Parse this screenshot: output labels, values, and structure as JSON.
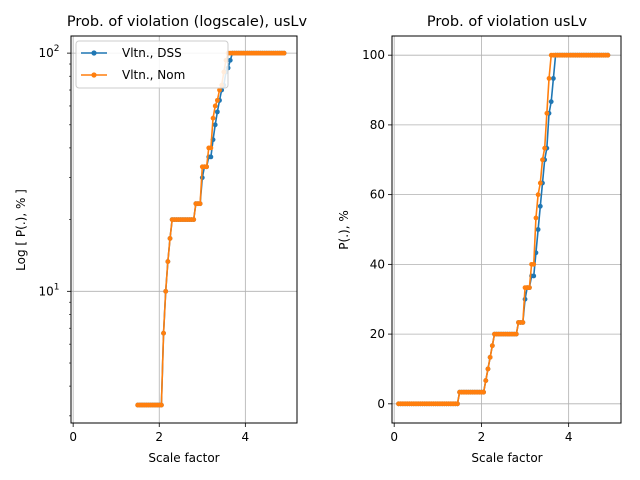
{
  "colors": {
    "dss": "#1f77b4",
    "nom": "#ff7f0e",
    "grid": "#b0b0b0"
  },
  "chart_data": [
    {
      "type": "line",
      "title": "Prob. of violation (logscale), usLv",
      "xlabel": "Scale factor",
      "ylabel": "Log [ P(.), % ]",
      "yscale": "log",
      "xlim": [
        -0.05,
        5.2
      ],
      "ylim": [
        2.8,
        118
      ],
      "xticks": [
        0,
        2,
        4
      ],
      "xtick_labels": [
        "0",
        "2",
        "4"
      ],
      "ytick_major": [
        {
          "value": 10,
          "base": "10",
          "exp": "1"
        },
        {
          "value": 100,
          "base": "10",
          "exp": "2"
        }
      ],
      "ytick_minor": [
        3,
        4,
        5,
        6,
        7,
        8,
        9,
        20,
        30,
        40,
        50,
        60,
        70,
        80,
        90
      ],
      "grid": true,
      "legend": "top-left",
      "series_ref": true
    },
    {
      "type": "line",
      "title": "Prob. of violation usLv",
      "xlabel": "Scale factor",
      "ylabel": "P(.), %",
      "yscale": "linear",
      "xlim": [
        -0.05,
        5.2
      ],
      "ylim": [
        -5.5,
        105.5
      ],
      "xticks": [
        0,
        2,
        4
      ],
      "xtick_labels": [
        "0",
        "2",
        "4"
      ],
      "yticks": [
        0,
        20,
        40,
        60,
        80,
        100
      ],
      "ytick_labels": [
        "0",
        "20",
        "40",
        "60",
        "80",
        "100"
      ],
      "grid": true,
      "series_ref": true
    }
  ],
  "series": [
    {
      "name": "Vltn., DSS",
      "color": "#1f77b4",
      "x": [
        0.1,
        0.15,
        0.2,
        0.25,
        0.3,
        0.35,
        0.4,
        0.45,
        0.5,
        0.55,
        0.6,
        0.65,
        0.7,
        0.75,
        0.8,
        0.85,
        0.9,
        0.95,
        1.0,
        1.05,
        1.1,
        1.15,
        1.2,
        1.25,
        1.3,
        1.35,
        1.4,
        1.45,
        1.5,
        1.55,
        1.6,
        1.65,
        1.7,
        1.75,
        1.8,
        1.85,
        1.9,
        1.95,
        2.0,
        2.05,
        2.1,
        2.15,
        2.2,
        2.25,
        2.3,
        2.35,
        2.4,
        2.45,
        2.5,
        2.55,
        2.6,
        2.65,
        2.7,
        2.75,
        2.8,
        2.85,
        2.9,
        2.95,
        3.0,
        3.05,
        3.1,
        3.15,
        3.2,
        3.25,
        3.3,
        3.35,
        3.4,
        3.45,
        3.5,
        3.55,
        3.6,
        3.65,
        3.7,
        3.75,
        3.8,
        3.85,
        3.9,
        3.95,
        4.0,
        4.05,
        4.1,
        4.15,
        4.2,
        4.25,
        4.3,
        4.35,
        4.4,
        4.45,
        4.5,
        4.55,
        4.6,
        4.65,
        4.7,
        4.75,
        4.8,
        4.85,
        4.9
      ],
      "y": [
        0,
        0,
        0,
        0,
        0,
        0,
        0,
        0,
        0,
        0,
        0,
        0,
        0,
        0,
        0,
        0,
        0,
        0,
        0,
        0,
        0,
        0,
        0,
        0,
        0,
        0,
        0,
        0,
        3.33,
        3.33,
        3.33,
        3.33,
        3.33,
        3.33,
        3.33,
        3.33,
        3.33,
        3.33,
        3.33,
        3.33,
        6.67,
        10,
        13.33,
        16.67,
        20,
        20,
        20,
        20,
        20,
        20,
        20,
        20,
        20,
        20,
        20,
        23.33,
        23.33,
        23.33,
        30,
        33.33,
        33.33,
        36.67,
        36.67,
        43.33,
        50,
        56.67,
        63.33,
        70,
        73.33,
        83.33,
        86.67,
        93.33,
        100,
        100,
        100,
        100,
        100,
        100,
        100,
        100,
        100,
        100,
        100,
        100,
        100,
        100,
        100,
        100,
        100,
        100,
        100,
        100,
        100,
        100,
        100,
        100,
        100
      ]
    },
    {
      "name": "Vltn., Nom",
      "color": "#ff7f0e",
      "x": [
        0.1,
        0.15,
        0.2,
        0.25,
        0.3,
        0.35,
        0.4,
        0.45,
        0.5,
        0.55,
        0.6,
        0.65,
        0.7,
        0.75,
        0.8,
        0.85,
        0.9,
        0.95,
        1.0,
        1.05,
        1.1,
        1.15,
        1.2,
        1.25,
        1.3,
        1.35,
        1.4,
        1.45,
        1.5,
        1.55,
        1.6,
        1.65,
        1.7,
        1.75,
        1.8,
        1.85,
        1.9,
        1.95,
        2.0,
        2.05,
        2.1,
        2.15,
        2.2,
        2.25,
        2.3,
        2.35,
        2.4,
        2.45,
        2.5,
        2.55,
        2.6,
        2.65,
        2.7,
        2.75,
        2.8,
        2.85,
        2.9,
        2.95,
        3.0,
        3.05,
        3.1,
        3.15,
        3.2,
        3.25,
        3.3,
        3.35,
        3.4,
        3.45,
        3.5,
        3.55,
        3.6,
        3.65,
        3.7,
        3.75,
        3.8,
        3.85,
        3.9,
        3.95,
        4.0,
        4.05,
        4.1,
        4.15,
        4.2,
        4.25,
        4.3,
        4.35,
        4.4,
        4.45,
        4.5,
        4.55,
        4.6,
        4.65,
        4.7,
        4.75,
        4.8,
        4.85,
        4.9
      ],
      "y": [
        0,
        0,
        0,
        0,
        0,
        0,
        0,
        0,
        0,
        0,
        0,
        0,
        0,
        0,
        0,
        0,
        0,
        0,
        0,
        0,
        0,
        0,
        0,
        0,
        0,
        0,
        0,
        0,
        3.33,
        3.33,
        3.33,
        3.33,
        3.33,
        3.33,
        3.33,
        3.33,
        3.33,
        3.33,
        3.33,
        3.33,
        6.67,
        10,
        13.33,
        16.67,
        20,
        20,
        20,
        20,
        20,
        20,
        20,
        20,
        20,
        20,
        20,
        23.33,
        23.33,
        23.33,
        33.33,
        33.33,
        33.33,
        40,
        40,
        53.33,
        60,
        63.33,
        70,
        73.33,
        83.33,
        93.33,
        100,
        100,
        100,
        100,
        100,
        100,
        100,
        100,
        100,
        100,
        100,
        100,
        100,
        100,
        100,
        100,
        100,
        100,
        100,
        100,
        100,
        100,
        100,
        100,
        100,
        100,
        100
      ]
    }
  ]
}
